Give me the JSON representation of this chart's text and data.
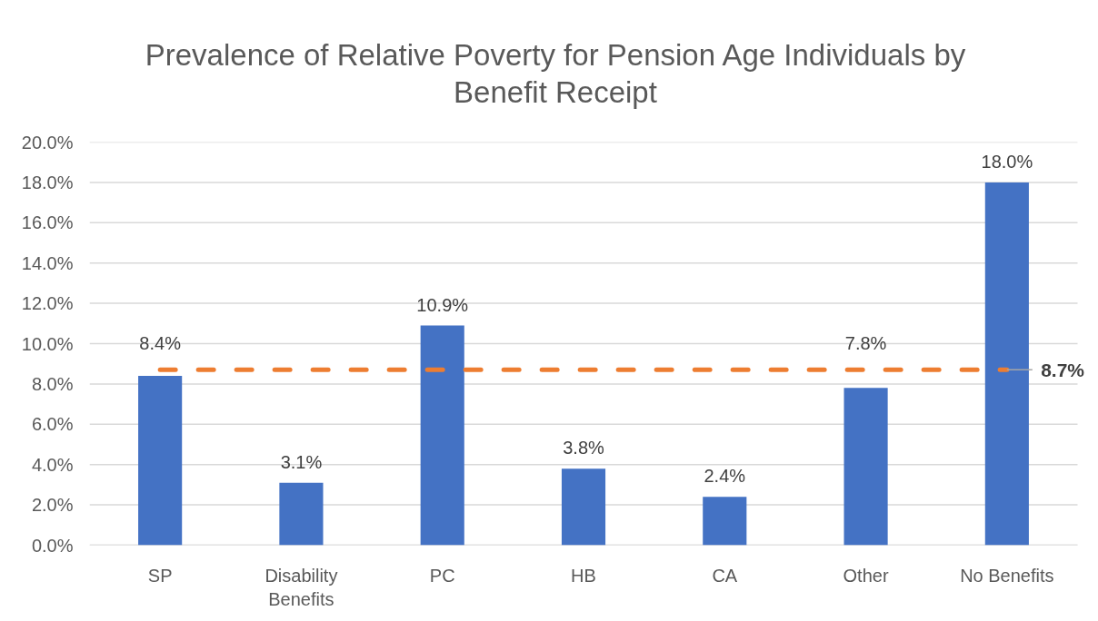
{
  "chart_data": {
    "type": "bar",
    "title": "Prevalence of Relative Poverty for Pension Age Individuals by Benefit Receipt",
    "categories": [
      "SP",
      "Disability Benefits",
      "PC",
      "HB",
      "CA",
      "Other",
      "No Benefits"
    ],
    "values": [
      8.4,
      3.1,
      10.9,
      3.8,
      2.4,
      7.8,
      18.0
    ],
    "color": "#4472c4",
    "value_labels": [
      "8.4%",
      "3.1%",
      "10.9%",
      "3.8%",
      "2.4%",
      "7.8%",
      "18.0%"
    ],
    "ylim": [
      0,
      20
    ],
    "yticks": [
      {
        "value": 0,
        "label": "0.0%"
      },
      {
        "value": 2,
        "label": "2.0%"
      },
      {
        "value": 4,
        "label": "4.0%"
      },
      {
        "value": 6,
        "label": "6.0%"
      },
      {
        "value": 8,
        "label": "8.0%"
      },
      {
        "value": 10,
        "label": "10.0%"
      },
      {
        "value": 12,
        "label": "12.0%"
      },
      {
        "value": 14,
        "label": "14.0%"
      },
      {
        "value": 16,
        "label": "16.0%"
      },
      {
        "value": 18,
        "label": "18.0%"
      },
      {
        "value": 20,
        "label": "20.0%"
      }
    ],
    "grid": "y",
    "ref_lines": [
      {
        "axis": "y",
        "value": 8.7,
        "label": "8.7%",
        "color": "#ed7d31",
        "line_style": "dashed"
      }
    ]
  }
}
